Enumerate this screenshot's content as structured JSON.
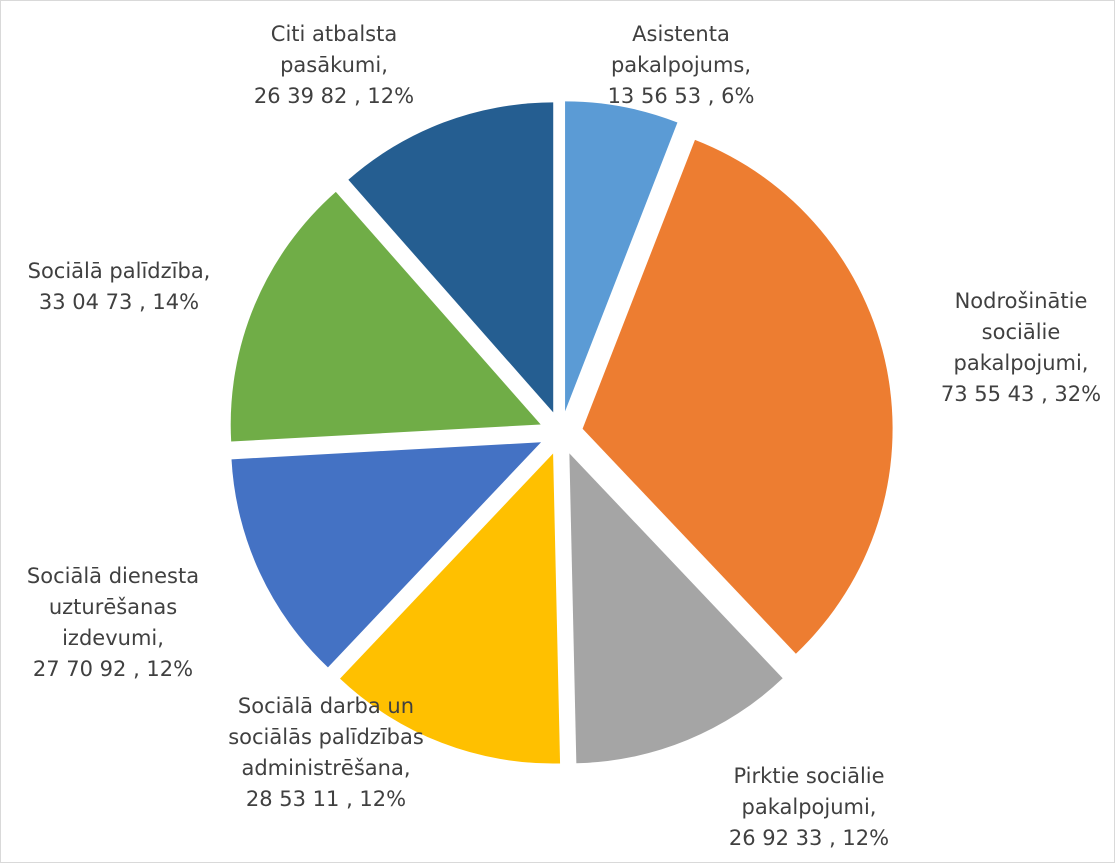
{
  "chart_data": {
    "type": "pie",
    "categories": [
      "Asistenta pakalpojums,",
      "Nodrošinātie sociālie pakalpojumi,",
      "Pirktie sociālie pakalpojumi,",
      "Sociālā darba un sociālās palīdzības administrēšana,",
      "Sociālā dienesta uzturēšanas izdevumi,",
      "Sociālā palīdzība,",
      "Citi atbalsta pasākumi,"
    ],
    "values": [
      135653,
      735543,
      269233,
      285311,
      277092,
      330473,
      263982
    ],
    "value_labels": [
      "13 56 53 , 6%",
      "73 55 43 , 32%",
      "26 92 33 , 12%",
      "28 53 11 , 12%",
      "27 70 92 , 12%",
      "33 04 73 , 14%",
      "26 39 82 , 12%"
    ],
    "colors": [
      "#5b9bd5",
      "#ed7d31",
      "#a5a5a5",
      "#ffc000",
      "#4472c4",
      "#70ad47",
      "#255e91"
    ],
    "exploded": true
  }
}
